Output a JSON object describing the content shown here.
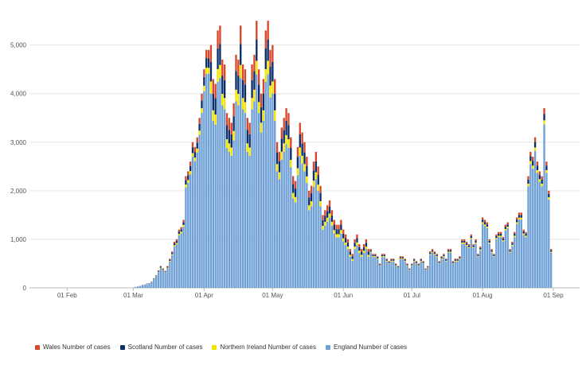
{
  "chart_data": {
    "type": "bar",
    "stacked": true,
    "x_start": "2020-01-16",
    "x_end": "2020-09-12",
    "x_tick_labels": [
      "01 Feb",
      "01 Mar",
      "01 Apr",
      "01 May",
      "01 Jun",
      "01 Jul",
      "01 Aug",
      "01 Sep"
    ],
    "y_tick_labels": [
      "0",
      "1,000",
      "2,000",
      "3,000",
      "4,000",
      "5,000"
    ],
    "ylim": [
      0,
      5600
    ],
    "grid": true,
    "legend_position": "bottom-left",
    "series": [
      {
        "name": "Wales Number of cases",
        "color": "#d9472b"
      },
      {
        "name": "Scotland Number of cases",
        "color": "#0b2d6b"
      },
      {
        "name": "Northern Ireland Number of cases",
        "color": "#f5e400"
      },
      {
        "name": "England Number of cases",
        "color": "#6fa0d6"
      }
    ],
    "daily_totals": [
      0,
      0,
      0,
      0,
      0,
      0,
      0,
      0,
      0,
      0,
      0,
      0,
      0,
      0,
      0,
      0,
      0,
      0,
      0,
      0,
      0,
      0,
      0,
      0,
      0,
      0,
      0,
      0,
      0,
      0,
      0,
      0,
      0,
      0,
      0,
      0,
      0,
      0,
      0,
      0,
      0,
      0,
      0,
      0,
      0,
      0,
      20,
      30,
      40,
      60,
      70,
      90,
      100,
      130,
      200,
      260,
      360,
      450,
      400,
      350,
      450,
      600,
      750,
      950,
      1000,
      1200,
      1250,
      1400,
      2300,
      2400,
      2600,
      3000,
      2900,
      3100,
      3500,
      4000,
      4500,
      4900,
      4900,
      5000,
      4300,
      4200,
      5300,
      5400,
      4700,
      4600,
      3600,
      3500,
      3400,
      3800,
      4800,
      4700,
      5400,
      4600,
      4500,
      3500,
      3400,
      4600,
      4800,
      5500,
      4500,
      4000,
      4300,
      5300,
      5500,
      4900,
      5000,
      4300,
      3000,
      2800,
      3300,
      3500,
      3700,
      3600,
      3100,
      2300,
      2200,
      2900,
      3400,
      3200,
      3000,
      2700,
      2000,
      2100,
      2600,
      2800,
      2500,
      2100,
      1500,
      1600,
      1700,
      1800,
      1600,
      1400,
      1300,
      1300,
      1400,
      1200,
      1100,
      1000,
      800,
      700,
      1000,
      1100,
      900,
      800,
      900,
      1000,
      800,
      800,
      700,
      700,
      650,
      500,
      700,
      700,
      600,
      550,
      600,
      600,
      500,
      450,
      650,
      650,
      600,
      500,
      400,
      500,
      600,
      550,
      500,
      600,
      550,
      400,
      450,
      750,
      800,
      750,
      700,
      550,
      650,
      700,
      600,
      800,
      800,
      550,
      600,
      600,
      650,
      1000,
      1000,
      950,
      900,
      1100,
      900,
      1000,
      700,
      850,
      1450,
      1400,
      1350,
      1000,
      800,
      700,
      1100,
      1150,
      1150,
      1050,
      1300,
      1350,
      800,
      950,
      1150,
      1450,
      1550,
      1550,
      1200,
      1150,
      2300,
      2800,
      2700,
      3100,
      2600,
      2400,
      2300,
      3700,
      2600,
      2000,
      800
    ]
  }
}
